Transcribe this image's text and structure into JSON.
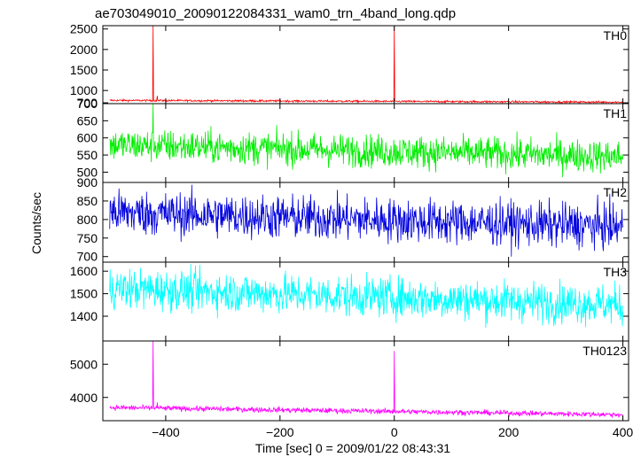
{
  "chart_data": {
    "type": "line",
    "title": "ae703049010_20090122084331_wam0_trn_4band_long.qdp",
    "xlabel": "Time [sec] 0 = 2009/01/22 08:43:31",
    "ylabel": "Counts/sec",
    "xlim": [
      -510,
      410
    ],
    "x_ticks": [
      -400,
      -200,
      0,
      200,
      400
    ],
    "x_tick_labels": [
      "−400",
      "−200",
      "0",
      "200",
      "400"
    ],
    "panels": [
      {
        "name": "TH0",
        "color": "#ff0000",
        "ylim": [
          680,
          2580
        ],
        "y_ticks": [
          700,
          1000,
          1500,
          2000,
          2500
        ],
        "baseline_start": 760,
        "baseline_end": 715,
        "noise": 12,
        "spikes": [
          {
            "x": -422,
            "y": 2580
          },
          {
            "x": -415,
            "y": 870
          },
          {
            "x": 0,
            "y": 2580
          }
        ]
      },
      {
        "name": "TH1",
        "color": "#00ee00",
        "ylim": [
          470,
          700
        ],
        "y_ticks": [
          500,
          550,
          600,
          650,
          700
        ],
        "baseline_start": 580,
        "baseline_end": 545,
        "noise": 24,
        "spikes": [
          {
            "x": -422,
            "y": 700
          }
        ]
      },
      {
        "name": "TH2",
        "color": "#0000dd",
        "ylim": [
          685,
          900
        ],
        "y_ticks": [
          700,
          750,
          800,
          850,
          900
        ],
        "baseline_start": 820,
        "baseline_end": 780,
        "noise": 30,
        "spikes": []
      },
      {
        "name": "TH3",
        "color": "#00ffff",
        "ylim": [
          1290,
          1640
        ],
        "y_ticks": [
          1400,
          1500,
          1600
        ],
        "baseline_start": 1525,
        "baseline_end": 1450,
        "noise": 45,
        "spikes": []
      },
      {
        "name": "TH0123",
        "color": "#ff00ff",
        "ylim": [
          3300,
          5700
        ],
        "y_ticks": [
          4000,
          5000
        ],
        "baseline_start": 3700,
        "baseline_end": 3480,
        "noise": 40,
        "spikes": [
          {
            "x": -422,
            "y": 5700
          },
          {
            "x": -415,
            "y": 3850
          },
          {
            "x": 0,
            "y": 5400
          }
        ]
      }
    ]
  }
}
